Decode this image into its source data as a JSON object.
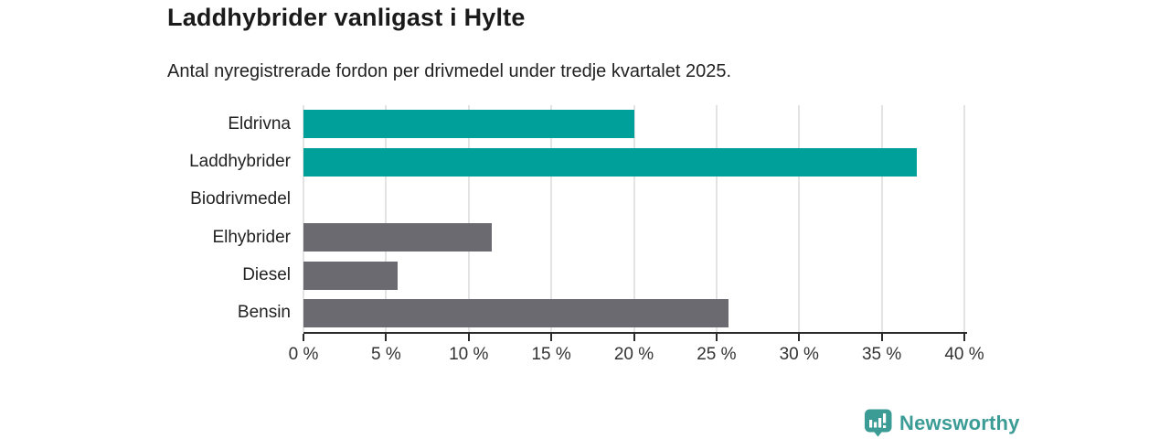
{
  "header": {
    "title": "Laddhybrider vanligast i Hylte",
    "subtitle": "Antal nyregistrerade fordon per drivmedel under tredje kvartalet 2025."
  },
  "chart_data": {
    "type": "bar",
    "orientation": "horizontal",
    "title": "Laddhybrider vanligast i Hylte",
    "subtitle": "Antal nyregistrerade fordon per drivmedel under tredje kvartalet 2025.",
    "categories": [
      "Eldrivna",
      "Laddhybrider",
      "Biodrivmedel",
      "Elhybrider",
      "Diesel",
      "Bensin"
    ],
    "values": [
      20.0,
      37.1,
      0,
      11.4,
      5.7,
      25.7
    ],
    "unit": "%",
    "xlabel": "",
    "ylabel": "",
    "xlim": [
      0,
      40
    ],
    "x_tick_values": [
      0,
      5,
      10,
      15,
      20,
      25,
      30,
      35,
      40
    ],
    "x_tick_labels": [
      "0 %",
      "5 %",
      "10 %",
      "15 %",
      "20 %",
      "25 %",
      "30 %",
      "35 %",
      "40 %"
    ],
    "grid": true,
    "legend": "none",
    "bar_colors": [
      "#00a09a",
      "#00a09a",
      "#00a09a",
      "#6b6a70",
      "#6b6a70",
      "#6b6a70"
    ]
  },
  "colors": {
    "accent_teal": "#00a09a",
    "bar_gray": "#6b6a70",
    "gridline": "#e3e3e3",
    "axis": "#2b2b2b",
    "logo_teal": "#3b9c95"
  },
  "footer": {
    "brand": "Newsworthy"
  }
}
